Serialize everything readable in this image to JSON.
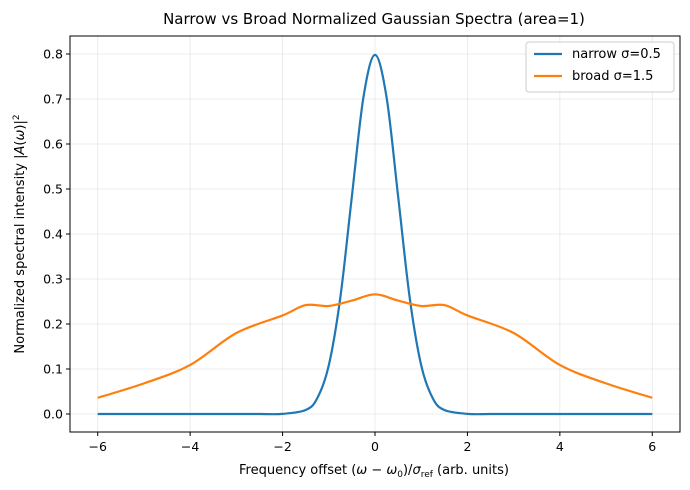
{
  "chart_data": {
    "type": "line",
    "title": "Narrow vs Broad Normalized Gaussian Spectra (area=1)",
    "xlabel": "Frequency offset (ω − ω₀)/σ_ref (arb. units)",
    "ylabel": "Normalized spectral intensity |A(ω)|²",
    "xlim": [
      -6.6,
      6.6
    ],
    "ylim": [
      -0.04,
      0.84
    ],
    "xticks": [
      -6,
      -4,
      -2,
      0,
      2,
      4,
      6
    ],
    "xtick_labels": [
      "−6",
      "−4",
      "−2",
      "0",
      "2",
      "4",
      "6"
    ],
    "yticks": [
      0.0,
      0.1,
      0.2,
      0.3,
      0.4,
      0.5,
      0.6,
      0.7,
      0.8
    ],
    "ytick_labels": [
      "0.0",
      "0.1",
      "0.2",
      "0.3",
      "0.4",
      "0.5",
      "0.6",
      "0.7",
      "0.8"
    ],
    "grid": true,
    "legend_position": "top-right",
    "series": [
      {
        "name": "narrow σ=0.5",
        "color": "#1f77b4",
        "x": [
          -6,
          -5,
          -4,
          -3,
          -2.5,
          -2,
          -1.5,
          -1.25,
          -1,
          -0.75,
          -0.5,
          -0.25,
          0,
          0.25,
          0.5,
          0.75,
          1,
          1.25,
          1.5,
          2,
          2.5,
          3,
          4,
          5,
          6
        ],
        "y": [
          0.0,
          0.0,
          0.0,
          0.0,
          0.0,
          0.0003,
          0.0089,
          0.035,
          0.108,
          0.259,
          0.484,
          0.704,
          0.798,
          0.704,
          0.484,
          0.259,
          0.108,
          0.035,
          0.0089,
          0.0003,
          0.0,
          0.0,
          0.0,
          0.0,
          0.0
        ]
      },
      {
        "name": "broad σ=1.5",
        "color": "#ff7f0e",
        "x": [
          -6,
          -5,
          -4,
          -3,
          -2,
          -1.5,
          -1,
          -0.5,
          0,
          0.5,
          1,
          1.5,
          2,
          3,
          4,
          5,
          6
        ],
        "y": [
          0.036,
          0.068,
          0.109,
          0.18,
          0.219,
          0.242,
          0.24,
          0.252,
          0.266,
          0.252,
          0.24,
          0.242,
          0.219,
          0.18,
          0.109,
          0.068,
          0.036
        ]
      }
    ]
  }
}
